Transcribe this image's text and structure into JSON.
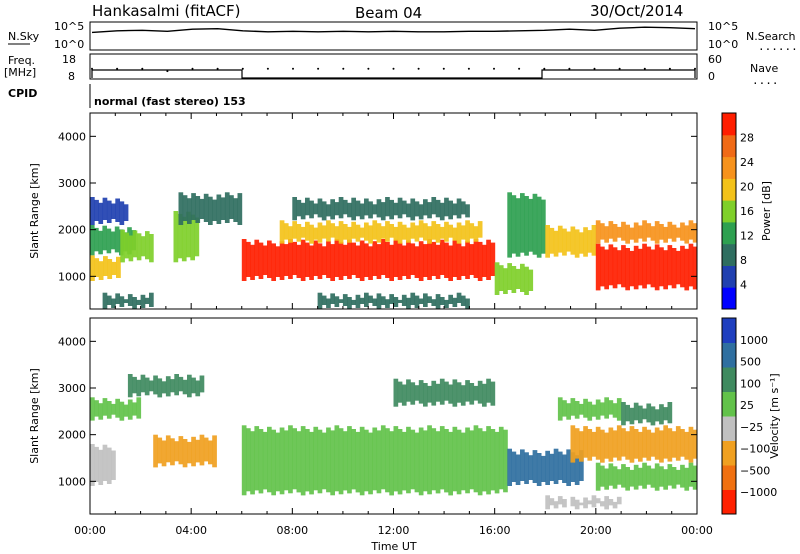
{
  "header": {
    "station": "Hankasalmi (fitACF)",
    "beam": "Beam 04",
    "date": "30/Oct/2014"
  },
  "side_labels": {
    "nsky": "N.Sky",
    "freq_line1": "Freq.",
    "freq_line2": "[MHz]",
    "cpid": "CPID",
    "nsearch": "N.Search",
    "nave": "Nave",
    "dots": "......",
    "dots_short": "...."
  },
  "mode_text": "normal (fast stereo) 153",
  "chart_data": [
    {
      "type": "line",
      "name": "noise-panel",
      "yticks_left": [
        "10^5",
        "10^0"
      ],
      "yticks_right": [
        "10^5",
        "10^0"
      ],
      "x": [
        "00:00",
        "01:00",
        "02:00",
        "03:00",
        "04:00",
        "05:00",
        "06:00",
        "07:00",
        "08:00",
        "09:00",
        "10:00",
        "11:00",
        "12:00",
        "13:00",
        "14:00",
        "15:00",
        "16:00",
        "17:00",
        "18:00",
        "19:00",
        "20:00",
        "21:00",
        "22:00",
        "23:00",
        "24:00"
      ],
      "series": [
        {
          "values": [
            3.2,
            3.5,
            3.6,
            3.4,
            3.8,
            3.9,
            3.5,
            3.3,
            3.4,
            3.3,
            3.4,
            3.3,
            3.4,
            3.3,
            3.3,
            3.4,
            3.4,
            3.5,
            3.6,
            3.8,
            3.6,
            4.0,
            4.2,
            4.1,
            3.9
          ]
        }
      ]
    },
    {
      "type": "line",
      "name": "frequency-panel",
      "yticks_left": [
        "18",
        "8"
      ],
      "yticks_right": [
        "60",
        "0"
      ],
      "x": [
        "00:00",
        "01:00",
        "02:00",
        "03:00",
        "04:00",
        "05:00",
        "06:00",
        "07:00",
        "08:00",
        "09:00",
        "10:00",
        "11:00",
        "12:00",
        "13:00",
        "14:00",
        "15:00",
        "16:00",
        "17:00",
        "18:00",
        "19:00",
        "20:00",
        "21:00",
        "22:00",
        "23:00",
        "24:00"
      ],
      "series": [
        {
          "values": [
            12,
            12,
            12,
            11,
            12,
            12,
            12,
            12,
            12,
            12,
            12,
            12,
            12,
            12,
            12,
            12,
            12,
            12,
            12,
            12,
            12,
            12,
            12,
            12,
            12
          ]
        }
      ]
    },
    {
      "type": "heatmap",
      "name": "power-panel",
      "ylabel": "Slant Range [km]",
      "ylim": [
        300,
        4500
      ],
      "yticks": [
        "1000",
        "2000",
        "3000",
        "4000"
      ],
      "xlim": [
        0,
        24
      ],
      "colorbar": {
        "label": "Power [dB]",
        "ticks": [
          "4",
          "8",
          "12",
          "16",
          "20",
          "24",
          "28"
        ],
        "colors": [
          "#0000ff",
          "#2040b0",
          "#2f6e60",
          "#2ea050",
          "#7fcf2a",
          "#f3c21a",
          "#f6921c",
          "#f06a16",
          "#ff1e00"
        ]
      },
      "bands": [
        {
          "t0": 0.0,
          "t1": 1.2,
          "r0": 900,
          "r1": 1450,
          "level": 5
        },
        {
          "t0": 0.0,
          "t1": 1.8,
          "r0": 1450,
          "r1": 2100,
          "level": 3
        },
        {
          "t0": 0.0,
          "t1": 1.5,
          "r0": 2100,
          "r1": 2700,
          "level": 1
        },
        {
          "t0": 0.5,
          "t1": 2.5,
          "r0": 300,
          "r1": 650,
          "level": 2
        },
        {
          "t0": 1.2,
          "t1": 2.5,
          "r0": 1300,
          "r1": 2000,
          "level": 4
        },
        {
          "t0": 3.3,
          "t1": 4.3,
          "r0": 1300,
          "r1": 2400,
          "level": 4
        },
        {
          "t0": 3.5,
          "t1": 6.0,
          "r0": 2100,
          "r1": 2800,
          "level": 2
        },
        {
          "t0": 6.0,
          "t1": 16.0,
          "r0": 900,
          "r1": 1800,
          "level": 8
        },
        {
          "t0": 7.5,
          "t1": 15.5,
          "r0": 1700,
          "r1": 2200,
          "level": 5
        },
        {
          "t0": 8.0,
          "t1": 15.0,
          "r0": 2200,
          "r1": 2700,
          "level": 2
        },
        {
          "t0": 9.0,
          "t1": 15.0,
          "r0": 300,
          "r1": 650,
          "level": 2
        },
        {
          "t0": 16.0,
          "t1": 17.5,
          "r0": 600,
          "r1": 1300,
          "level": 4
        },
        {
          "t0": 16.5,
          "t1": 18.0,
          "r0": 1400,
          "r1": 2800,
          "level": 3
        },
        {
          "t0": 18.0,
          "t1": 20.0,
          "r0": 1400,
          "r1": 2100,
          "level": 5
        },
        {
          "t0": 20.0,
          "t1": 24.0,
          "r0": 700,
          "r1": 1700,
          "level": 8
        },
        {
          "t0": 20.0,
          "t1": 24.0,
          "r0": 1700,
          "r1": 2200,
          "level": 6
        }
      ]
    },
    {
      "type": "heatmap",
      "name": "velocity-panel",
      "xlabel": "Time UT",
      "ylabel": "Slant Range [km]",
      "ylim": [
        300,
        4500
      ],
      "yticks": [
        "1000",
        "2000",
        "3000",
        "4000"
      ],
      "xticks": [
        "00:00",
        "04:00",
        "08:00",
        "12:00",
        "16:00",
        "20:00",
        "00:00"
      ],
      "xlim": [
        0,
        24
      ],
      "colorbar": {
        "label": "Velocity [m s⁻¹]",
        "ticks": [
          "1000",
          "500",
          "100",
          "25",
          "−25",
          "−100",
          "−500",
          "−1000"
        ],
        "colors": [
          "#1f3fbf",
          "#2f6fa0",
          "#3f8a5f",
          "#62c24a",
          "#c0c0c0",
          "#f0a020",
          "#f07010",
          "#ff2000"
        ]
      },
      "bands": [
        {
          "t0": 0.0,
          "t1": 1.0,
          "r0": 900,
          "r1": 1800,
          "level": 3
        },
        {
          "t0": 0.0,
          "t1": 2.0,
          "r0": 2300,
          "r1": 2800,
          "level": 4
        },
        {
          "t0": 1.5,
          "t1": 4.5,
          "r0": 2800,
          "r1": 3300,
          "level": 5
        },
        {
          "t0": 2.5,
          "t1": 5.0,
          "r0": 1300,
          "r1": 2000,
          "level": 2
        },
        {
          "t0": 6.0,
          "t1": 16.5,
          "r0": 700,
          "r1": 2200,
          "level": 4
        },
        {
          "t0": 12.0,
          "t1": 16.0,
          "r0": 2600,
          "r1": 3200,
          "level": 5
        },
        {
          "t0": 16.5,
          "t1": 19.5,
          "r0": 900,
          "r1": 1700,
          "level": 6
        },
        {
          "t0": 18.5,
          "t1": 21.0,
          "r0": 2300,
          "r1": 2800,
          "level": 4
        },
        {
          "t0": 19.0,
          "t1": 24.0,
          "r0": 1400,
          "r1": 2200,
          "level": 2
        },
        {
          "t0": 20.0,
          "t1": 24.0,
          "r0": 800,
          "r1": 1400,
          "level": 4
        },
        {
          "t0": 21.0,
          "t1": 23.0,
          "r0": 2200,
          "r1": 2700,
          "level": 5
        },
        {
          "t0": 18.0,
          "t1": 21.0,
          "r0": 400,
          "r1": 700,
          "level": 3
        }
      ]
    }
  ]
}
